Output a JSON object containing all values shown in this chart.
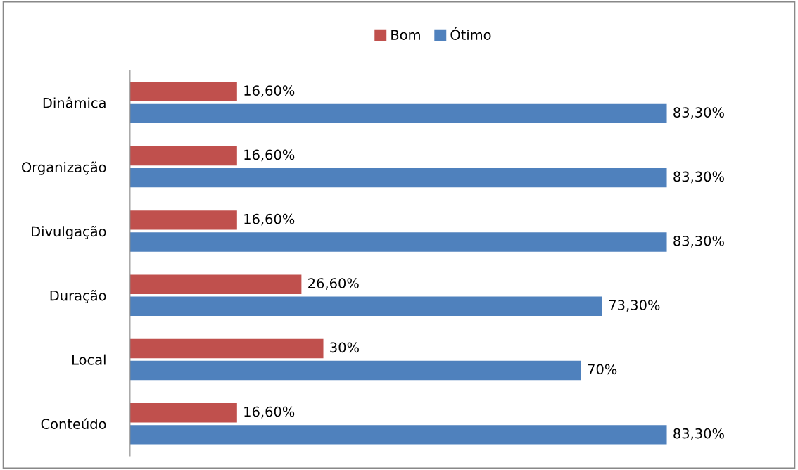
{
  "chart_data": {
    "type": "bar",
    "orientation": "horizontal",
    "categories": [
      "Dinâmica",
      "Organização",
      "Divulgação",
      "Duração",
      "Local",
      "Conteúdo"
    ],
    "series": [
      {
        "name": "Bom",
        "color": "#c0504d",
        "values": [
          16.6,
          16.6,
          16.6,
          26.6,
          30,
          16.6
        ],
        "value_labels": [
          "16,60%",
          "16,60%",
          "16,60%",
          "26,60%",
          "30%",
          "16,60%"
        ]
      },
      {
        "name": "Ótimo",
        "color": "#4f81bd",
        "values": [
          83.3,
          83.3,
          83.3,
          73.3,
          70,
          83.3
        ],
        "value_labels": [
          "83,30%",
          "83,30%",
          "83,30%",
          "73,30%",
          "70%",
          "83,30%"
        ]
      }
    ],
    "legend": "top",
    "grid": false,
    "tick_labels": "y"
  }
}
